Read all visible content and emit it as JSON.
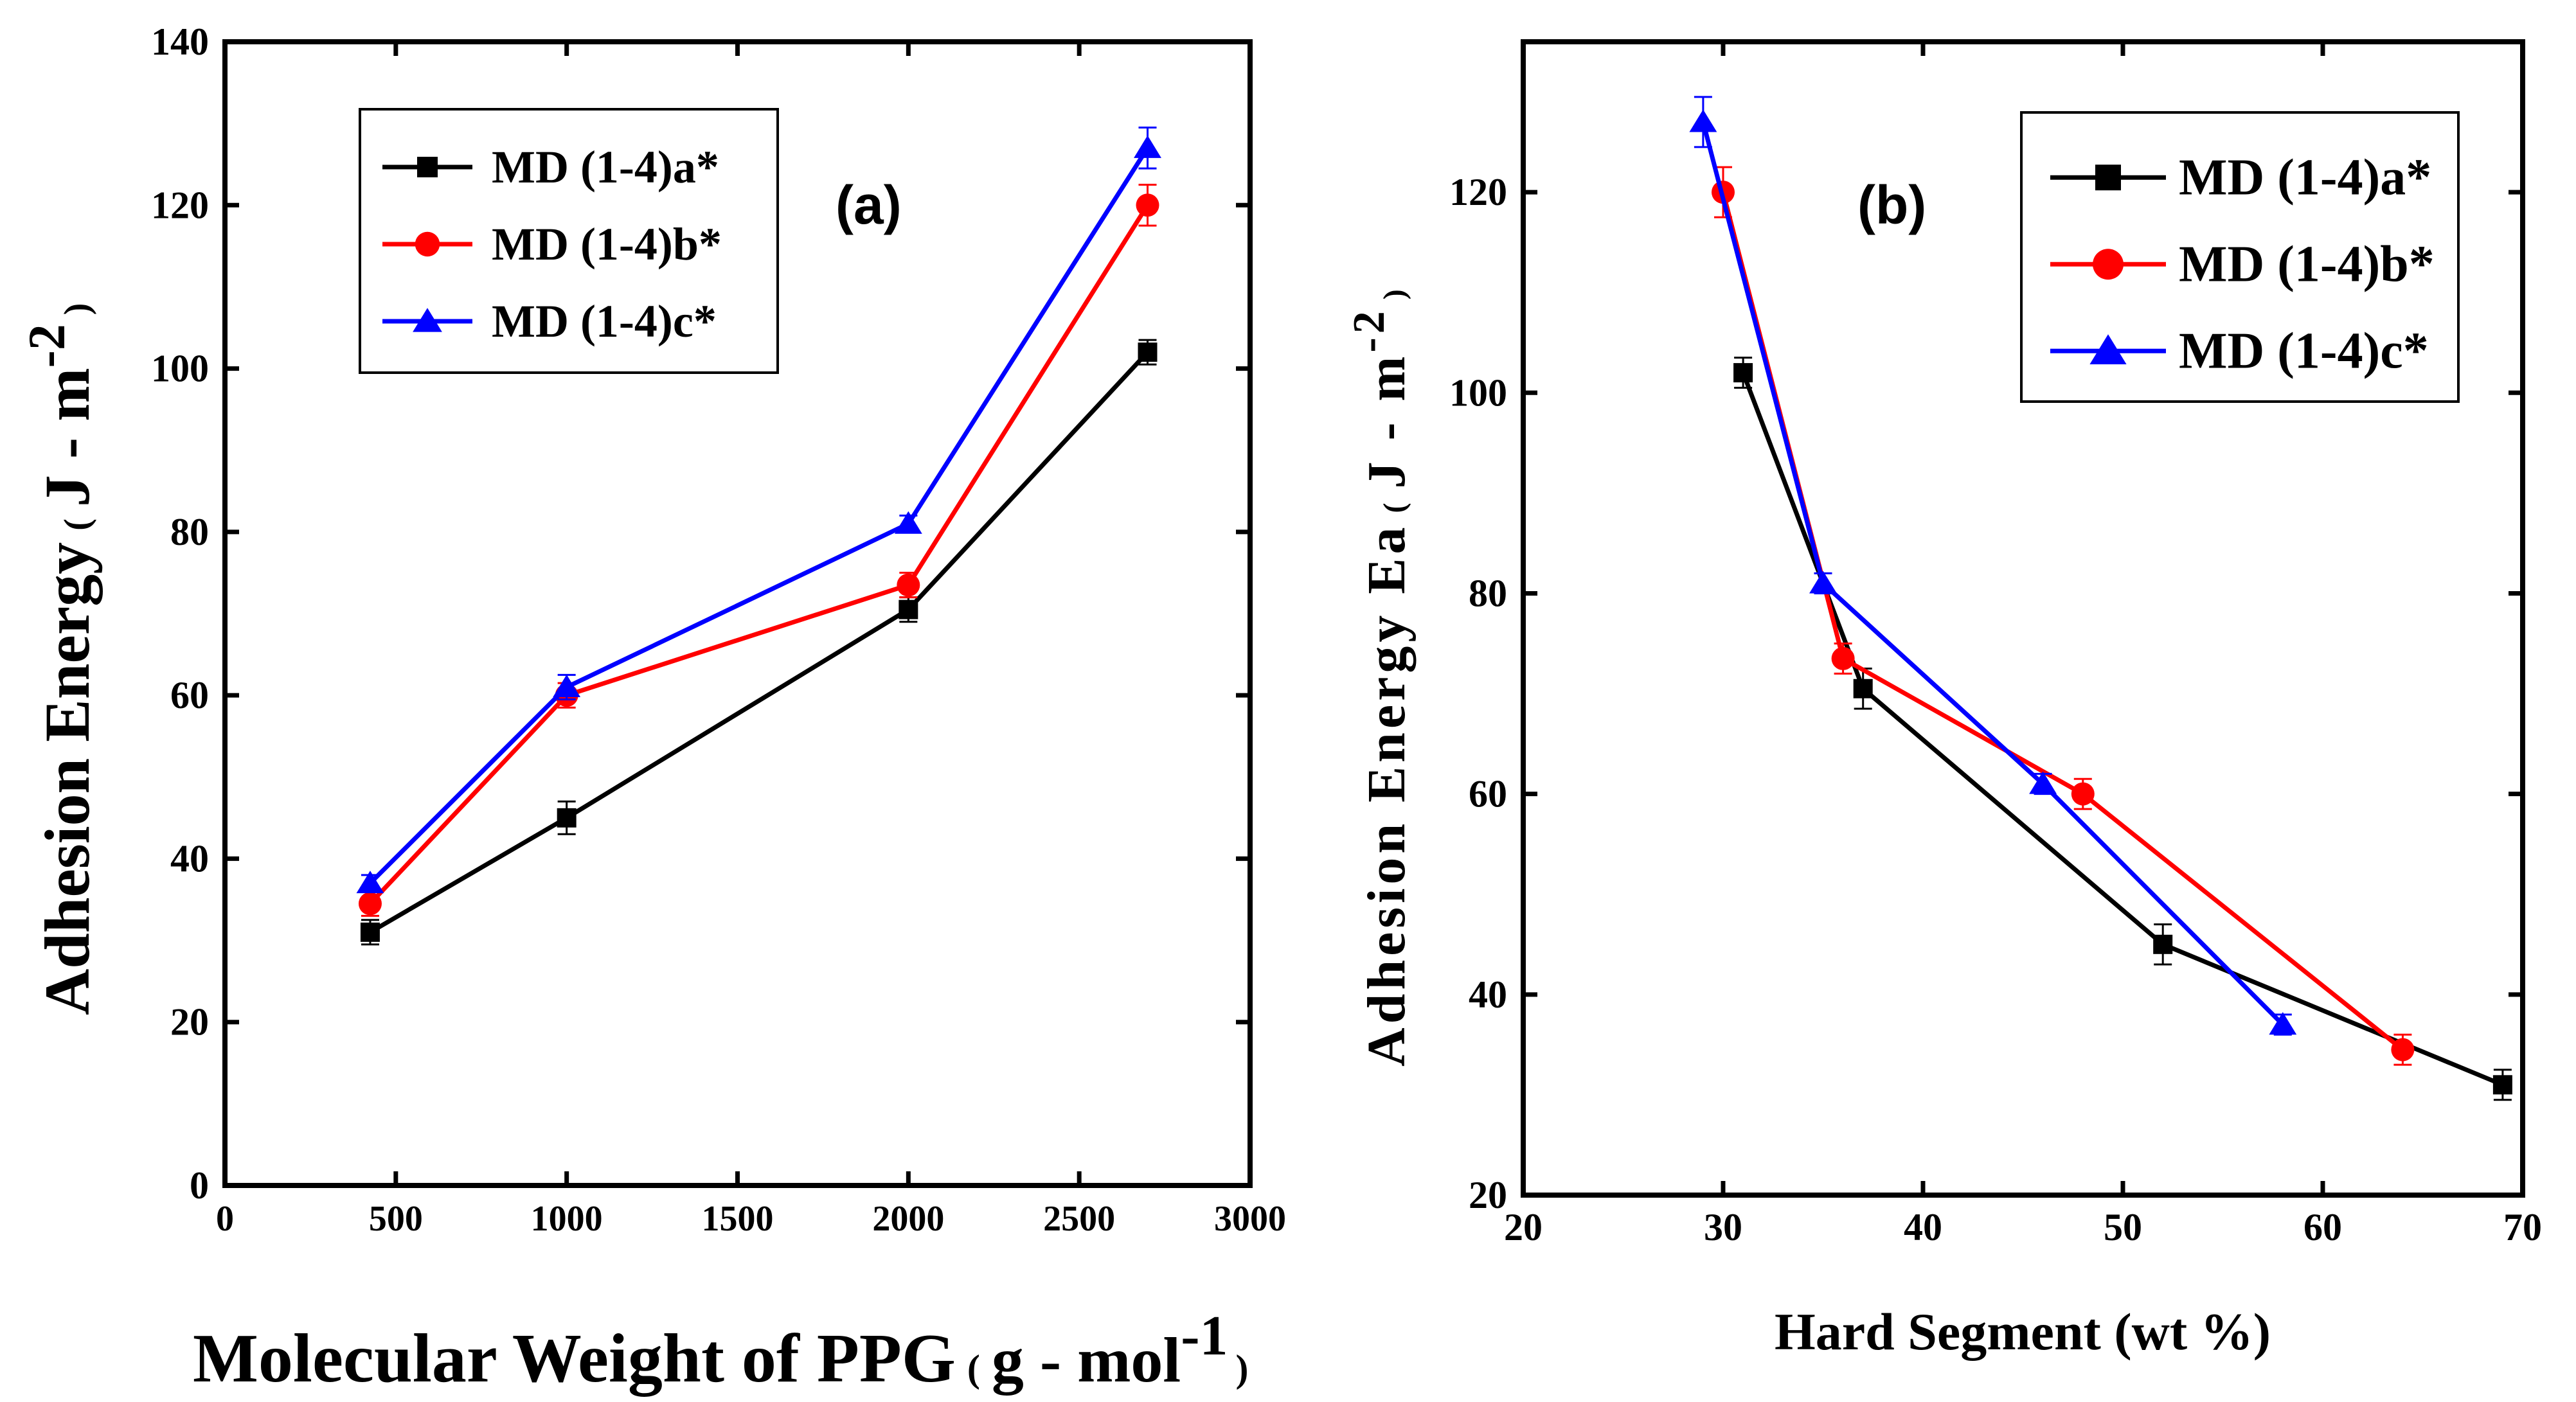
{
  "chart_data": [
    {
      "type": "line",
      "panel_label": "(a)",
      "xlabel_main": "Molecular Weight of PPG",
      "xlabel_unit_open": "(",
      "xlabel_unit": "g - mol",
      "xlabel_unit_sup": "-1",
      "xlabel_unit_close": ")",
      "ylabel_main": "Adhesion Energy",
      "ylabel_unit_open": "(",
      "ylabel_unit": "J - m",
      "ylabel_unit_sup": "-2",
      "ylabel_unit_close": ")",
      "xlim": [
        0,
        3000
      ],
      "ylim": [
        0,
        140
      ],
      "xticks": [
        "0",
        "500",
        "1000",
        "1500",
        "2000",
        "2500",
        "3000"
      ],
      "xtick_values": [
        0,
        500,
        1000,
        1500,
        2000,
        2500,
        3000
      ],
      "yticks": [
        "0",
        "20",
        "40",
        "60",
        "80",
        "100",
        "120",
        "140"
      ],
      "ytick_values": [
        0,
        20,
        40,
        60,
        80,
        100,
        120,
        140
      ],
      "legend_position": "top-left",
      "series": [
        {
          "name": "MD (1-4)a*",
          "color": "#000000",
          "marker": "square",
          "x": [
            425,
            1000,
            2000,
            2700
          ],
          "y": [
            31,
            45,
            70.5,
            102
          ],
          "err": [
            1.5,
            2,
            1.5,
            1.5
          ]
        },
        {
          "name": "MD (1-4)b*",
          "color": "#ff0000",
          "marker": "circle",
          "x": [
            425,
            1000,
            2000,
            2700
          ],
          "y": [
            34.5,
            60,
            73.5,
            120
          ],
          "err": [
            1.5,
            1.5,
            1.5,
            2.5
          ]
        },
        {
          "name": "MD (1-4)c*",
          "color": "#0000ff",
          "marker": "triangle",
          "x": [
            425,
            1000,
            2000,
            2700
          ],
          "y": [
            37,
            61,
            81,
            127
          ],
          "err": [
            1,
            1.5,
            1,
            2.5
          ]
        }
      ]
    },
    {
      "type": "line",
      "panel_label": "(b)",
      "xlabel_main": "Hard Segment (wt %)",
      "ylabel_main": "Adhesion Energy Ea",
      "ylabel_unit_open": "(",
      "ylabel_unit": "J - m",
      "ylabel_unit_sup": "-2",
      "ylabel_unit_close": ")",
      "xlim": [
        20,
        70
      ],
      "ylim": [
        20,
        135
      ],
      "xticks": [
        "20",
        "30",
        "40",
        "50",
        "60",
        "70"
      ],
      "xtick_values": [
        20,
        30,
        40,
        50,
        60,
        70
      ],
      "yticks": [
        "20",
        "40",
        "60",
        "80",
        "100",
        "120"
      ],
      "ytick_values": [
        20,
        40,
        60,
        80,
        100,
        120
      ],
      "legend_position": "top-right",
      "series": [
        {
          "name": "MD (1-4)a*",
          "color": "#000000",
          "marker": "square",
          "x": [
            31,
            37,
            52,
            69
          ],
          "y": [
            102,
            70.5,
            45,
            31
          ],
          "err": [
            1.5,
            2,
            2,
            1.5
          ]
        },
        {
          "name": "MD (1-4)b*",
          "color": "#ff0000",
          "marker": "circle",
          "x": [
            30,
            36,
            48,
            64
          ],
          "y": [
            120,
            73.5,
            60,
            34.5
          ],
          "err": [
            2.5,
            1.5,
            1.5,
            1.5
          ]
        },
        {
          "name": "MD (1-4)c*",
          "color": "#0000ff",
          "marker": "triangle",
          "x": [
            29,
            35,
            46,
            58
          ],
          "y": [
            127,
            81,
            61,
            37
          ],
          "err": [
            2.5,
            1,
            1,
            1
          ]
        }
      ]
    }
  ]
}
